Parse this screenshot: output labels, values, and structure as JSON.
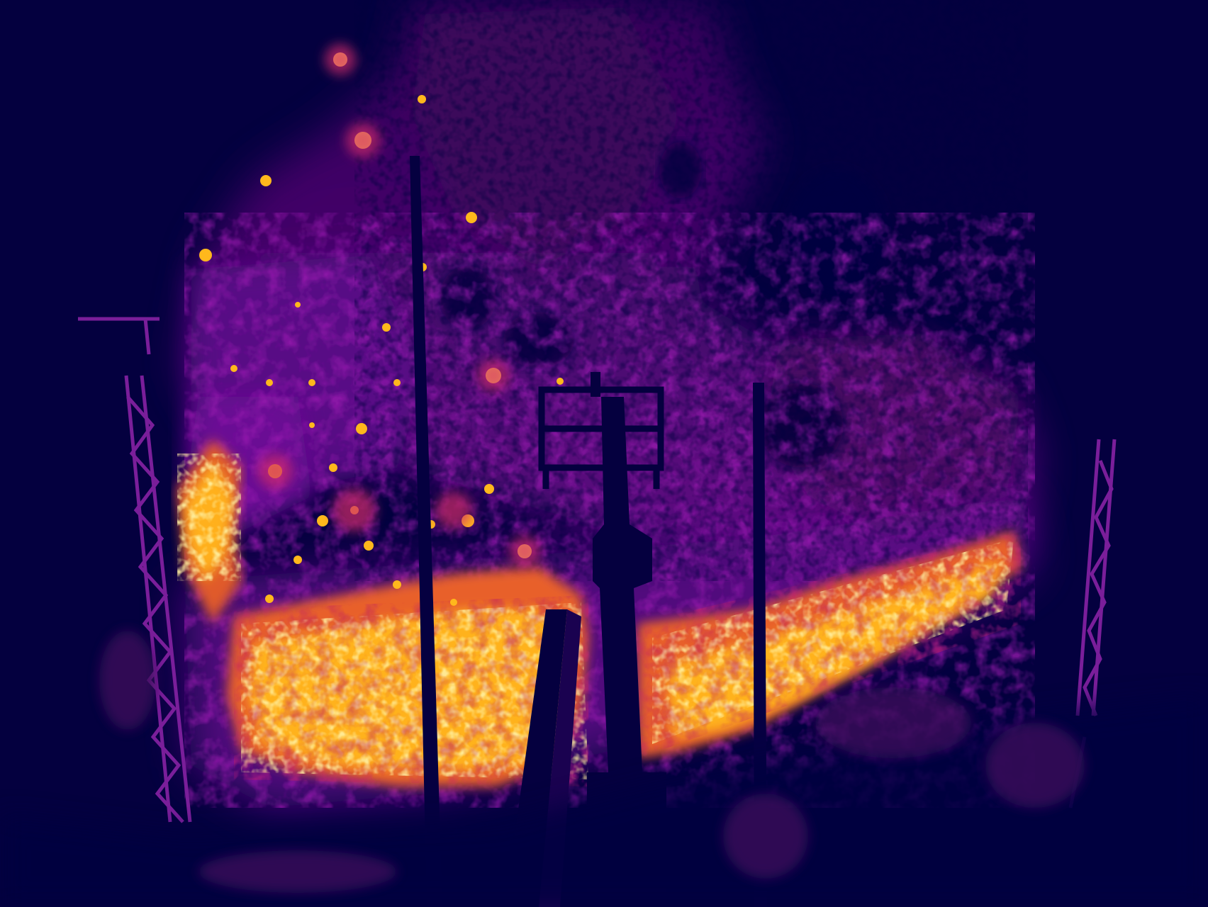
{
  "image": {
    "kind": "thermal-infrared-photograph",
    "colormap": "inferno",
    "palette": {
      "background": "#04003f",
      "cool": "#2a0070",
      "mid_low": "#5a0a78",
      "mid": "#8a10a0",
      "warm": "#d02a6a",
      "hot": "#f27a1a",
      "hotter": "#ffb21a",
      "hottest": "#fff3a0"
    },
    "objects": [
      "thermal-plume",
      "fire-front",
      "lattice-tower-left",
      "lattice-tower-right",
      "vertical-pole-left",
      "vertical-pole-right",
      "central-mast",
      "instrument-box"
    ]
  }
}
